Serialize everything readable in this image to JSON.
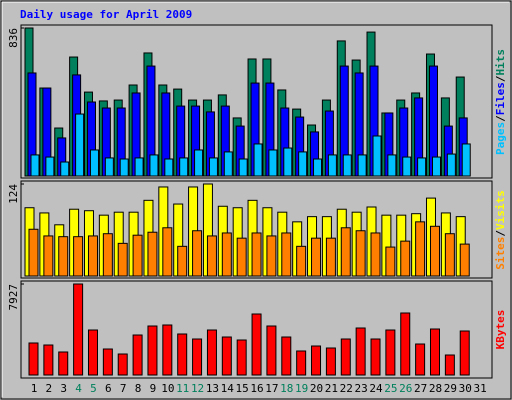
{
  "chart_data": [
    {
      "type": "bar",
      "title": "Daily usage for April 2009",
      "separator": "/",
      "ylim": [
        0,
        836
      ],
      "yticks": [
        836
      ],
      "series": [
        {
          "name": "Hits",
          "color": "#00805c",
          "values": [
            836,
            497,
            271,
            672,
            474,
            424,
            429,
            514,
            695,
            514,
            491,
            429,
            429,
            458,
            328,
            661,
            661,
            486,
            378,
            288,
            429,
            763,
            655,
            813,
            356,
            429,
            469,
            689,
            441,
            559,
            null
          ]
        },
        {
          "name": "Files",
          "color": "#0000ff",
          "values": [
            582,
            497,
            215,
            571,
            418,
            384,
            384,
            469,
            621,
            469,
            395,
            395,
            362,
            395,
            282,
            525,
            525,
            384,
            333,
            249,
            367,
            621,
            582,
            621,
            356,
            384,
            441,
            621,
            282,
            328,
            null
          ]
        },
        {
          "name": "Pages",
          "color": "#00c0ff",
          "values": [
            119,
            107,
            79,
            350,
            147,
            102,
            96,
            102,
            119,
            96,
            102,
            147,
            102,
            136,
            96,
            181,
            147,
            158,
            136,
            96,
            119,
            119,
            119,
            226,
            119,
            107,
            102,
            107,
            124,
            181,
            null
          ]
        }
      ]
    },
    {
      "type": "bar",
      "separator": "/",
      "ylim": [
        0,
        124
      ],
      "yticks": [
        124
      ],
      "series": [
        {
          "name": "Visits",
          "color": "#ffff00",
          "values": [
            92,
            85,
            69,
            90,
            88,
            82,
            86,
            86,
            102,
            120,
            97,
            120,
            124,
            94,
            92,
            102,
            92,
            86,
            73,
            80,
            80,
            90,
            86,
            93,
            82,
            82,
            84,
            105,
            85,
            80,
            null
          ]
        },
        {
          "name": "Sites",
          "color": "#ff8000",
          "values": [
            63,
            54,
            53,
            53,
            54,
            57,
            44,
            55,
            59,
            65,
            40,
            61,
            54,
            58,
            51,
            58,
            54,
            58,
            40,
            51,
            51,
            65,
            61,
            58,
            39,
            47,
            73,
            67,
            57,
            43,
            null
          ]
        }
      ]
    },
    {
      "type": "bar",
      "ylim": [
        0,
        7927
      ],
      "yticks": [
        7927
      ],
      "categories": [
        "1",
        "2",
        "3",
        "4",
        "5",
        "6",
        "7",
        "8",
        "9",
        "10",
        "11",
        "12",
        "13",
        "14",
        "15",
        "16",
        "17",
        "18",
        "19",
        "20",
        "21",
        "22",
        "23",
        "24",
        "25",
        "26",
        "27",
        "28",
        "29",
        "30",
        "31"
      ],
      "category_colors": [
        "#000000",
        "#000000",
        "#000000",
        "#00805c",
        "#00805c",
        "#000000",
        "#000000",
        "#000000",
        "#000000",
        "#000000",
        "#00805c",
        "#00805c",
        "#000000",
        "#000000",
        "#000000",
        "#000000",
        "#000000",
        "#00805c",
        "#00805c",
        "#000000",
        "#000000",
        "#000000",
        "#000000",
        "#000000",
        "#00805c",
        "#00805c",
        "#000000",
        "#000000",
        "#000000",
        "#000000",
        "#000000"
      ],
      "series": [
        {
          "name": "KBytes",
          "color": "#ff0000",
          "values": [
            2788,
            2613,
            2004,
            7927,
            3920,
            2265,
            1829,
            3484,
            4268,
            4356,
            3572,
            3136,
            3920,
            3310,
            3049,
            5314,
            4268,
            3310,
            2091,
            2526,
            2352,
            3136,
            4094,
            3136,
            3920,
            5401,
            2700,
            4007,
            1742,
            3833,
            null
          ]
        }
      ]
    }
  ]
}
